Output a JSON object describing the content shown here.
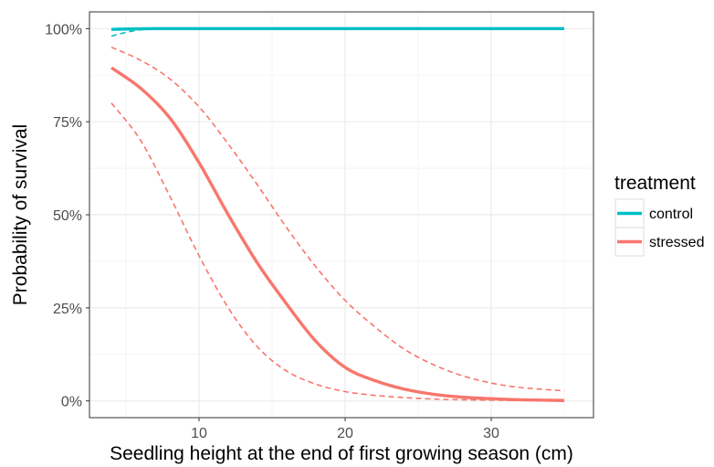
{
  "chart_data": {
    "type": "line",
    "title": "",
    "xlabel": "Seedling height at the end of first growing season (cm)",
    "ylabel": "Probability of survival",
    "xlim": [
      2.5,
      37
    ],
    "ylim": [
      -0.045,
      1.045
    ],
    "x_ticks": [
      10,
      20,
      30
    ],
    "x_tick_labels": [
      "10",
      "20",
      "30"
    ],
    "y_ticks": [
      0,
      0.25,
      0.5,
      0.75,
      1.0
    ],
    "y_tick_labels": [
      "0%",
      "25%",
      "50%",
      "75%",
      "100%"
    ],
    "grid": true,
    "legend": {
      "title": "treatment",
      "position": "right",
      "entries": [
        "control",
        "stressed"
      ]
    },
    "series": [
      {
        "name": "control",
        "color": "#00BFC4",
        "x": [
          4,
          5,
          6,
          7,
          10,
          15,
          20,
          25,
          30,
          35
        ],
        "fit": [
          0.998,
          0.999,
          0.9995,
          1.0,
          1.0,
          1.0,
          1.0,
          1.0,
          1.0,
          1.0
        ],
        "lower": [
          0.98,
          0.99,
          0.997,
          1.0,
          1.0,
          1.0,
          1.0,
          1.0,
          1.0,
          1.0
        ],
        "upper": [
          1.0,
          1.0,
          1.0,
          1.0,
          1.0,
          1.0,
          1.0,
          1.0,
          1.0,
          1.0
        ]
      },
      {
        "name": "stressed",
        "color": "#F8766D",
        "x": [
          4,
          6,
          8,
          10,
          12,
          14,
          16,
          18,
          20,
          22,
          24,
          26,
          28,
          30,
          32,
          35
        ],
        "fit": [
          0.895,
          0.84,
          0.76,
          0.64,
          0.5,
          0.37,
          0.26,
          0.16,
          0.09,
          0.055,
          0.032,
          0.018,
          0.01,
          0.006,
          0.003,
          0.001
        ],
        "lower": [
          0.8,
          0.7,
          0.55,
          0.39,
          0.25,
          0.145,
          0.08,
          0.045,
          0.025,
          0.015,
          0.009,
          0.005,
          0.003,
          0.002,
          0.001,
          0.0003
        ],
        "upper": [
          0.95,
          0.915,
          0.865,
          0.79,
          0.69,
          0.58,
          0.465,
          0.36,
          0.27,
          0.2,
          0.14,
          0.098,
          0.068,
          0.048,
          0.036,
          0.027
        ]
      }
    ]
  }
}
